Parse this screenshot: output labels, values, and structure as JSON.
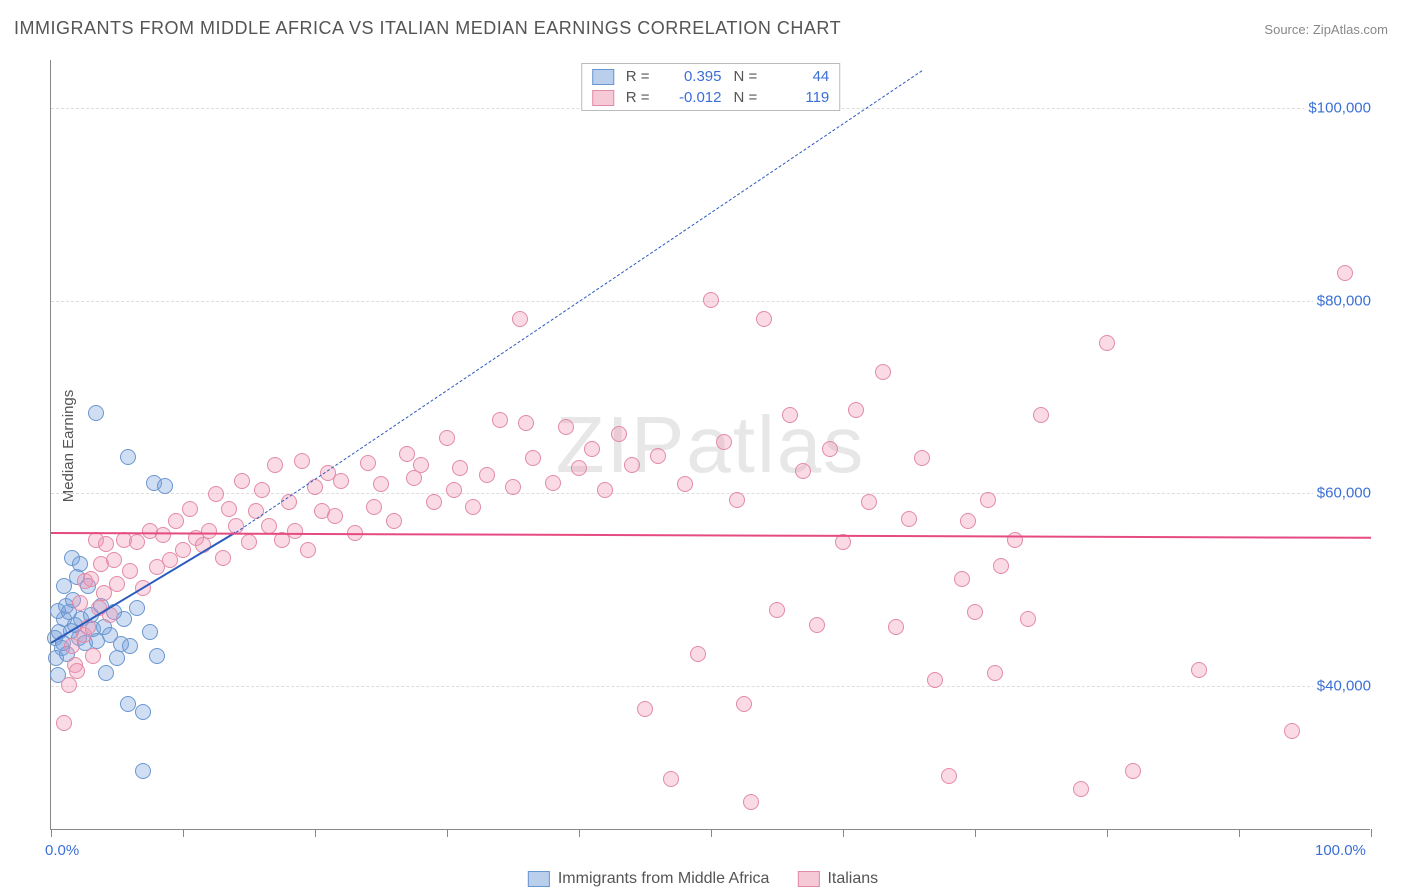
{
  "title": "IMMIGRANTS FROM MIDDLE AFRICA VS ITALIAN MEDIAN EARNINGS CORRELATION CHART",
  "source_label": "Source:",
  "source_value": "ZipAtlas.com",
  "ylabel": "Median Earnings",
  "watermark": "ZIPatlas",
  "chart": {
    "type": "scatter",
    "background_color": "#ffffff",
    "grid_color": "#dddddd",
    "axis_color": "#888888",
    "xlim": [
      0,
      100
    ],
    "ylim": [
      25000,
      105000
    ],
    "yticks": [
      40000,
      60000,
      80000,
      100000
    ],
    "ytick_labels": [
      "$40,000",
      "$60,000",
      "$80,000",
      "$100,000"
    ],
    "xticks": [
      0,
      10,
      20,
      30,
      40,
      50,
      60,
      70,
      80,
      90,
      100
    ],
    "xtick_labels": {
      "0": "0.0%",
      "100": "100.0%"
    },
    "label_fontsize": 15,
    "tick_color": "#3b6fd6",
    "marker_radius": 8,
    "marker_stroke_width": 1.5,
    "marker_fill_opacity": 0.35
  },
  "series": [
    {
      "name": "Immigrants from Middle Africa",
      "color_fill": "rgba(120,160,220,0.35)",
      "color_stroke": "#6a96d0",
      "swatch_fill": "#b9cfec",
      "swatch_stroke": "#6a96d0",
      "R": "0.395",
      "N": "44",
      "trend": {
        "style": "solid-then-dashed",
        "color": "#2b5bbd",
        "width": 2,
        "x1": 0,
        "y1": 44500,
        "x_solid_end": 14,
        "y_solid_end": 56000,
        "x2": 66,
        "y2": 104000
      },
      "points": [
        [
          0.3,
          44800
        ],
        [
          0.6,
          45500
        ],
        [
          0.8,
          43800
        ],
        [
          1.0,
          46800
        ],
        [
          1.1,
          48200
        ],
        [
          0.4,
          42800
        ],
        [
          0.5,
          41000
        ],
        [
          0.5,
          47600
        ],
        [
          0.9,
          44300
        ],
        [
          1.2,
          43200
        ],
        [
          1.4,
          47500
        ],
        [
          1.0,
          50200
        ],
        [
          1.5,
          45600
        ],
        [
          1.7,
          48800
        ],
        [
          2.0,
          51200
        ],
        [
          2.1,
          44800
        ],
        [
          2.3,
          46800
        ],
        [
          1.8,
          46200
        ],
        [
          2.6,
          44300
        ],
        [
          2.8,
          50200
        ],
        [
          3.0,
          47200
        ],
        [
          3.2,
          45800
        ],
        [
          3.5,
          44500
        ],
        [
          3.8,
          48200
        ],
        [
          4.0,
          46000
        ],
        [
          4.2,
          41200
        ],
        [
          4.5,
          45200
        ],
        [
          4.8,
          47500
        ],
        [
          5.0,
          42800
        ],
        [
          5.3,
          44200
        ],
        [
          5.5,
          46800
        ],
        [
          5.8,
          38000
        ],
        [
          6.0,
          44000
        ],
        [
          6.5,
          48000
        ],
        [
          7.0,
          37200
        ],
        [
          7.5,
          45500
        ],
        [
          8.0,
          43000
        ],
        [
          1.6,
          53200
        ],
        [
          3.4,
          68200
        ],
        [
          2.2,
          52500
        ],
        [
          5.8,
          63600
        ],
        [
          7.8,
          61000
        ],
        [
          8.6,
          60600
        ],
        [
          7.0,
          31000
        ]
      ]
    },
    {
      "name": "Italians",
      "color_fill": "rgba(240,150,180,0.35)",
      "color_stroke": "#e28ba5",
      "swatch_fill": "#f6c9d6",
      "swatch_stroke": "#e28ba5",
      "R": "-0.012",
      "N": "119",
      "trend": {
        "style": "solid",
        "color": "#e54b82",
        "width": 2.5,
        "x1": 0,
        "y1": 56000,
        "x2": 100,
        "y2": 55500
      },
      "points": [
        [
          1.0,
          36000
        ],
        [
          1.4,
          40000
        ],
        [
          1.6,
          44000
        ],
        [
          1.8,
          42000
        ],
        [
          2.0,
          41400
        ],
        [
          2.2,
          48500
        ],
        [
          2.5,
          45200
        ],
        [
          2.6,
          50800
        ],
        [
          2.8,
          46000
        ],
        [
          3.0,
          51000
        ],
        [
          3.2,
          43000
        ],
        [
          3.4,
          55000
        ],
        [
          3.6,
          48000
        ],
        [
          3.8,
          52500
        ],
        [
          4.0,
          49500
        ],
        [
          4.2,
          54600
        ],
        [
          4.5,
          47200
        ],
        [
          4.8,
          53000
        ],
        [
          5.0,
          50500
        ],
        [
          5.5,
          55000
        ],
        [
          6.0,
          51800
        ],
        [
          6.5,
          54800
        ],
        [
          7.0,
          50000
        ],
        [
          7.5,
          56000
        ],
        [
          8.0,
          52200
        ],
        [
          8.5,
          55500
        ],
        [
          9.0,
          53000
        ],
        [
          9.5,
          57000
        ],
        [
          10.0,
          54000
        ],
        [
          10.5,
          58200
        ],
        [
          11.0,
          55200
        ],
        [
          11.5,
          54500
        ],
        [
          12.0,
          56000
        ],
        [
          12.5,
          59800
        ],
        [
          13.0,
          53200
        ],
        [
          13.5,
          58200
        ],
        [
          14.0,
          56500
        ],
        [
          14.5,
          61200
        ],
        [
          15.0,
          54800
        ],
        [
          15.5,
          58000
        ],
        [
          16.0,
          60200
        ],
        [
          16.5,
          56500
        ],
        [
          17.0,
          62800
        ],
        [
          17.5,
          55000
        ],
        [
          18.0,
          59000
        ],
        [
          18.5,
          56000
        ],
        [
          19.0,
          63200
        ],
        [
          19.5,
          54000
        ],
        [
          20.0,
          60500
        ],
        [
          20.5,
          58000
        ],
        [
          21.0,
          62000
        ],
        [
          21.5,
          57500
        ],
        [
          22.0,
          61200
        ],
        [
          23.0,
          55800
        ],
        [
          24.0,
          63000
        ],
        [
          24.5,
          58500
        ],
        [
          25.0,
          60800
        ],
        [
          26.0,
          57000
        ],
        [
          27.0,
          64000
        ],
        [
          27.5,
          61500
        ],
        [
          28.0,
          62800
        ],
        [
          29.0,
          59000
        ],
        [
          30.0,
          65600
        ],
        [
          30.5,
          60200
        ],
        [
          31.0,
          62500
        ],
        [
          32.0,
          58500
        ],
        [
          33.0,
          61800
        ],
        [
          34.0,
          67500
        ],
        [
          35.0,
          60500
        ],
        [
          35.5,
          78000
        ],
        [
          36.0,
          67200
        ],
        [
          36.5,
          63500
        ],
        [
          38.0,
          61000
        ],
        [
          39.0,
          66800
        ],
        [
          40.0,
          62500
        ],
        [
          41.0,
          64500
        ],
        [
          42.0,
          60200
        ],
        [
          43.0,
          66000
        ],
        [
          44.0,
          62800
        ],
        [
          45.0,
          37500
        ],
        [
          46.0,
          63800
        ],
        [
          47.0,
          30200
        ],
        [
          48.0,
          60800
        ],
        [
          49.0,
          43200
        ],
        [
          50.0,
          80000
        ],
        [
          51.0,
          65200
        ],
        [
          52.0,
          59200
        ],
        [
          52.5,
          38000
        ],
        [
          53.0,
          27800
        ],
        [
          54.0,
          78000
        ],
        [
          55.0,
          47800
        ],
        [
          56.0,
          68000
        ],
        [
          57.0,
          62200
        ],
        [
          58.0,
          46200
        ],
        [
          59.0,
          64500
        ],
        [
          60.0,
          54800
        ],
        [
          61.0,
          68500
        ],
        [
          62.0,
          59000
        ],
        [
          63.0,
          72500
        ],
        [
          64.0,
          46000
        ],
        [
          65.0,
          57200
        ],
        [
          66.0,
          63500
        ],
        [
          67.0,
          40500
        ],
        [
          68.0,
          30500
        ],
        [
          69.0,
          51000
        ],
        [
          70.0,
          47500
        ],
        [
          71.0,
          59200
        ],
        [
          71.5,
          41200
        ],
        [
          72.0,
          52300
        ],
        [
          73.0,
          55000
        ],
        [
          74.0,
          46800
        ],
        [
          75.0,
          68000
        ],
        [
          78.0,
          29200
        ],
        [
          80.0,
          75500
        ],
        [
          82.0,
          31000
        ],
        [
          87.0,
          41500
        ],
        [
          94.0,
          35200
        ],
        [
          98.0,
          82800
        ],
        [
          69.5,
          57000
        ]
      ]
    }
  ],
  "legend_bottom": [
    {
      "label": "Immigrants from Middle Africa",
      "swatch_fill": "#b9cfec",
      "swatch_stroke": "#6a96d0"
    },
    {
      "label": "Italians",
      "swatch_fill": "#f6c9d6",
      "swatch_stroke": "#e28ba5"
    }
  ]
}
